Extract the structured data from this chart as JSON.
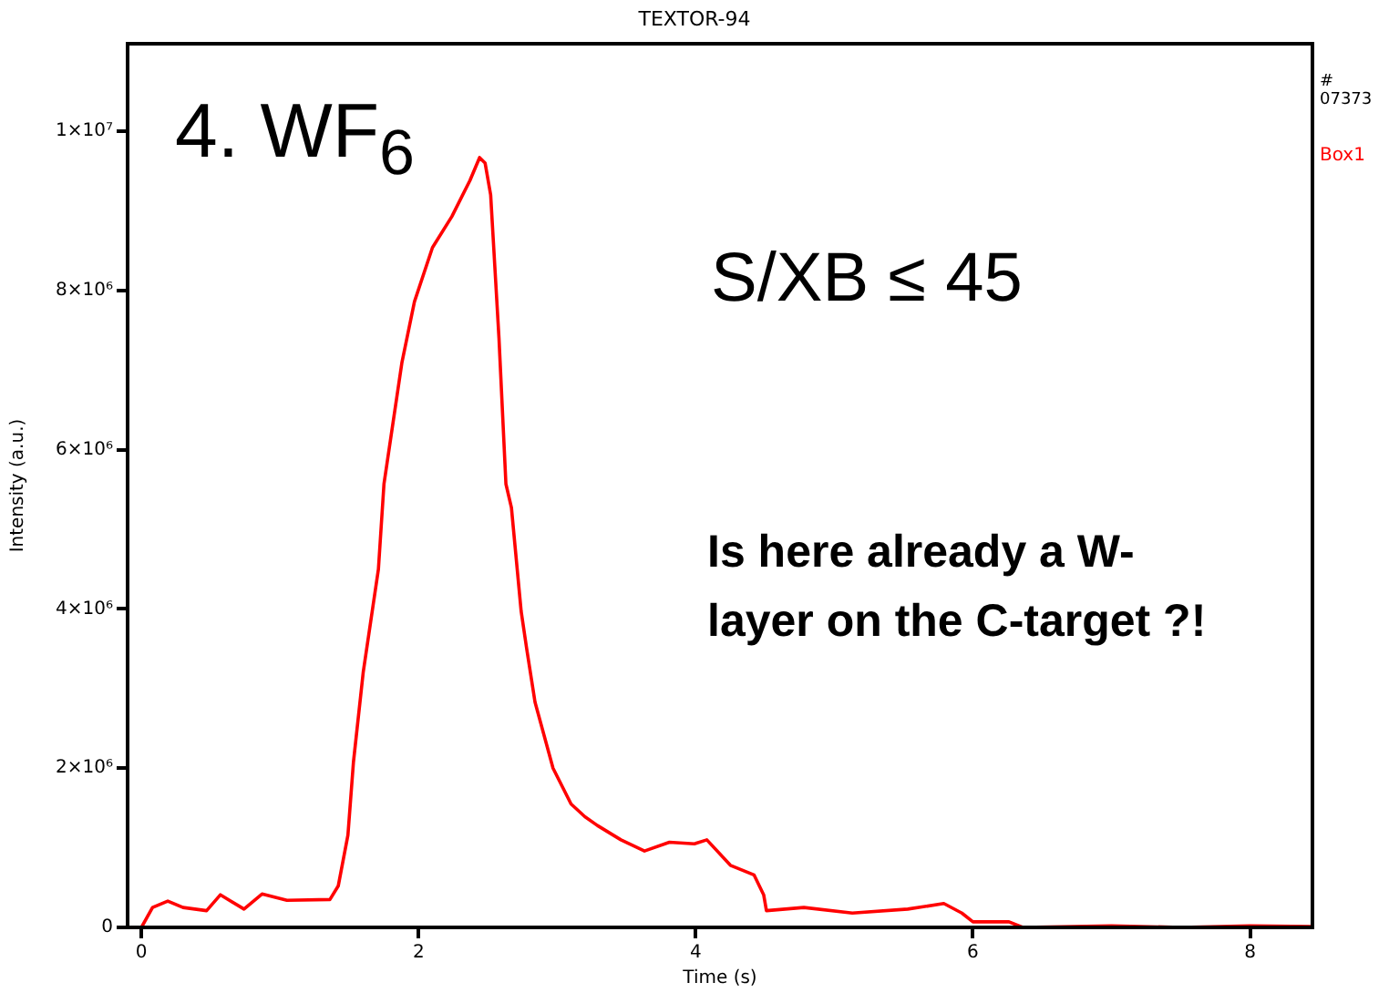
{
  "chart_data": {
    "type": "line",
    "title": "TEXTOR-94",
    "xlabel": "Time (s)",
    "ylabel": "Intensity (a.u.)",
    "annotations": [
      "# 07373",
      "4. WF$_{6}$",
      "S/XB ≤ 45",
      "Is here already a W-layer on the C-target ?!"
    ],
    "xlim": [
      -0.1,
      8.45
    ],
    "xticks": [
      0,
      2,
      4,
      6,
      8
    ],
    "ylim": [
      0,
      11100000
    ],
    "yticks": [
      {
        "value": 0,
        "label": "0"
      },
      {
        "value": 2000000,
        "label": "2×10⁶"
      },
      {
        "value": 4000000,
        "label": "4×10⁶"
      },
      {
        "value": 6000000,
        "label": "6×10⁶"
      },
      {
        "value": 8000000,
        "label": "8×10⁶"
      },
      {
        "value": 10000000,
        "label": "1×10⁷"
      }
    ],
    "grid": false,
    "legend": "top right",
    "marker": "none",
    "line_style": "solid",
    "series": [
      {
        "name": "Box1",
        "color": "#ff0000",
        "x": [
          0,
          0.08,
          0.19,
          0.3,
          0.47,
          0.57,
          0.74,
          0.87,
          1.05,
          1.36,
          1.42,
          1.49,
          1.53,
          1.6,
          1.71,
          1.75,
          1.88,
          1.97,
          2.1,
          2.24,
          2.37,
          2.44,
          2.48,
          2.52,
          2.58,
          2.63,
          2.67,
          2.74,
          2.78,
          2.84,
          2.97,
          3.1,
          3.2,
          3.29,
          3.46,
          3.63,
          3.81,
          3.99,
          4.08,
          4.25,
          4.42,
          4.49,
          4.51,
          4.78,
          5.13,
          5.53,
          5.79,
          5.92,
          6.0,
          6.26,
          6.36,
          7.0,
          7.5,
          8.0,
          8.45
        ],
        "values": [
          0,
          250000,
          330000,
          250000,
          210000,
          410000,
          230000,
          420000,
          340000,
          350000,
          520000,
          1160000,
          2080000,
          3200000,
          4500000,
          5570000,
          7100000,
          7860000,
          8540000,
          8930000,
          9380000,
          9670000,
          9600000,
          9200000,
          7400000,
          5570000,
          5270000,
          3970000,
          3500000,
          2830000,
          2000000,
          1550000,
          1390000,
          1280000,
          1100000,
          960000,
          1070000,
          1050000,
          1100000,
          780000,
          660000,
          410000,
          210000,
          250000,
          180000,
          230000,
          300000,
          180000,
          70000,
          70000,
          0,
          20000,
          0,
          20000,
          10000
        ]
      }
    ]
  }
}
